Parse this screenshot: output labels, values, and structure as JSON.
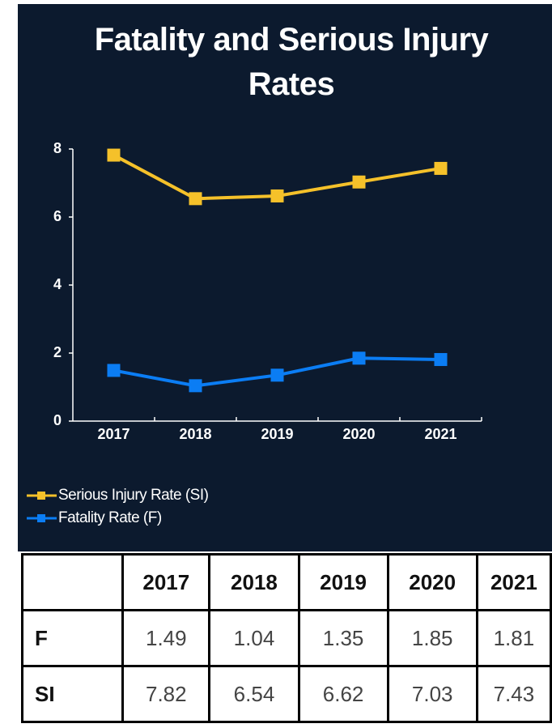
{
  "chart_data": {
    "type": "line",
    "title": "Fatality and Serious Injury Rates",
    "categories": [
      "2017",
      "2018",
      "2019",
      "2020",
      "2021"
    ],
    "series": [
      {
        "name": "Serious Injury Rate (SI)",
        "color": "#f5c12a",
        "values": [
          7.82,
          6.54,
          6.62,
          7.03,
          7.43
        ]
      },
      {
        "name": "Fatality Rate (F)",
        "color": "#0b7df4",
        "values": [
          1.49,
          1.04,
          1.35,
          1.85,
          1.81
        ]
      }
    ],
    "ylim": [
      0,
      8
    ],
    "yticks": [
      0,
      2,
      4,
      6,
      8
    ],
    "grid": false,
    "legend": "bottom-left"
  },
  "table": {
    "row_labels": [
      "F",
      "SI"
    ]
  }
}
